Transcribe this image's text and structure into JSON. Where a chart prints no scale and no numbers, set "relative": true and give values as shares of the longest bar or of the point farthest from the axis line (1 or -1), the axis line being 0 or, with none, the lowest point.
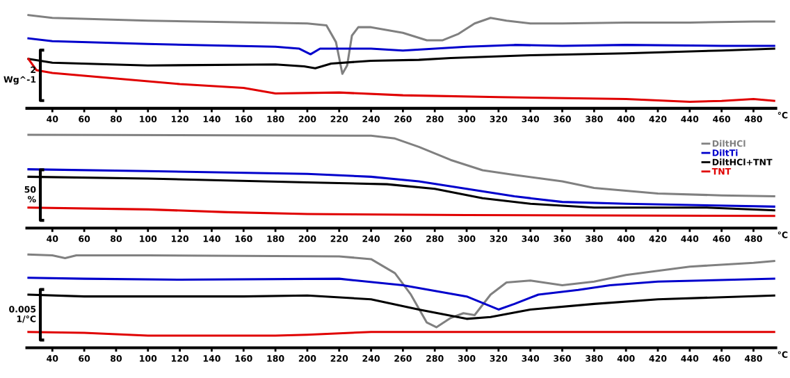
{
  "chart_data": [
    {
      "type": "line",
      "relative": true,
      "xlim": [
        24,
        494
      ],
      "xticks": [
        40,
        60,
        80,
        100,
        120,
        140,
        160,
        180,
        200,
        220,
        240,
        260,
        280,
        300,
        320,
        340,
        360,
        380,
        400,
        420,
        440,
        460,
        480
      ],
      "xlabel": "°C",
      "annotations": [
        "2\nWg^-1"
      ],
      "legend": false,
      "series": [
        {
          "color": "#808080",
          "x": [
            25,
            40,
            100,
            200,
            212,
            218,
            222,
            225,
            228,
            232,
            240,
            260,
            275,
            285,
            295,
            305,
            315,
            325,
            340,
            360,
            400,
            440,
            480,
            493
          ],
          "values": [
            1.0,
            0.97,
            0.94,
            0.91,
            0.89,
            0.71,
            0.37,
            0.46,
            0.78,
            0.87,
            0.87,
            0.81,
            0.73,
            0.73,
            0.8,
            0.91,
            0.97,
            0.94,
            0.91,
            0.91,
            0.92,
            0.92,
            0.93,
            0.93
          ]
        },
        {
          "color": "#0000cc",
          "x": [
            25,
            40,
            100,
            180,
            195,
            202,
            208,
            240,
            260,
            300,
            330,
            360,
            400,
            460,
            493
          ],
          "values": [
            0.75,
            0.72,
            0.69,
            0.66,
            0.64,
            0.58,
            0.64,
            0.64,
            0.62,
            0.66,
            0.68,
            0.67,
            0.68,
            0.67,
            0.67
          ]
        },
        {
          "color": "#000000",
          "x": [
            25,
            40,
            100,
            180,
            198,
            205,
            215,
            240,
            270,
            290,
            340,
            400,
            460,
            493
          ],
          "values": [
            0.53,
            0.49,
            0.46,
            0.47,
            0.45,
            0.43,
            0.48,
            0.51,
            0.52,
            0.54,
            0.57,
            0.59,
            0.62,
            0.64
          ]
        },
        {
          "color": "#e00000",
          "x": [
            25,
            30,
            40,
            80,
            120,
            160,
            180,
            220,
            260,
            320,
            400,
            440,
            460,
            480,
            493
          ],
          "values": [
            0.53,
            0.41,
            0.38,
            0.32,
            0.26,
            0.22,
            0.16,
            0.17,
            0.14,
            0.12,
            0.1,
            0.07,
            0.08,
            0.1,
            0.08
          ]
        }
      ]
    },
    {
      "type": "line",
      "relative": true,
      "xlim": [
        24,
        494
      ],
      "xticks": [
        40,
        60,
        80,
        100,
        120,
        140,
        160,
        180,
        200,
        220,
        240,
        260,
        280,
        300,
        320,
        340,
        360,
        380,
        400,
        420,
        440,
        460,
        480
      ],
      "xlabel": "°C",
      "annotations": [
        "50\n%"
      ],
      "legend": "right",
      "series": [
        {
          "name": "DiltHCl",
          "color": "#808080",
          "x": [
            25,
            240,
            255,
            270,
            290,
            310,
            330,
            360,
            380,
            420,
            460,
            493
          ],
          "values": [
            1.0,
            0.99,
            0.96,
            0.87,
            0.73,
            0.62,
            0.57,
            0.5,
            0.43,
            0.37,
            0.35,
            0.34
          ]
        },
        {
          "name": "DiltTi",
          "color": "#0000cc",
          "x": [
            25,
            100,
            200,
            240,
            270,
            300,
            330,
            360,
            400,
            493
          ],
          "values": [
            0.63,
            0.61,
            0.58,
            0.55,
            0.5,
            0.42,
            0.34,
            0.28,
            0.26,
            0.23
          ]
        },
        {
          "name": "DiltHCl+TNT",
          "color": "#000000",
          "x": [
            25,
            100,
            200,
            250,
            280,
            310,
            340,
            380,
            450,
            493
          ],
          "values": [
            0.55,
            0.53,
            0.49,
            0.47,
            0.42,
            0.32,
            0.26,
            0.22,
            0.22,
            0.19
          ]
        },
        {
          "name": "TNT",
          "color": "#e00000",
          "x": [
            25,
            100,
            150,
            200,
            300,
            493
          ],
          "values": [
            0.22,
            0.2,
            0.17,
            0.15,
            0.14,
            0.13
          ]
        }
      ]
    },
    {
      "type": "line",
      "relative": true,
      "xlim": [
        24,
        494
      ],
      "xticks": [
        40,
        60,
        80,
        100,
        120,
        140,
        160,
        180,
        200,
        220,
        240,
        260,
        280,
        300,
        320,
        340,
        360,
        380,
        400,
        420,
        440,
        460,
        480
      ],
      "xlabel": "°C",
      "annotations": [
        "0.005\n1/°C"
      ],
      "legend": false,
      "series": [
        {
          "color": "#808080",
          "x": [
            25,
            40,
            48,
            55,
            100,
            220,
            240,
            255,
            265,
            275,
            281,
            290,
            298,
            305,
            315,
            325,
            340,
            360,
            380,
            400,
            440,
            480,
            493
          ],
          "values": [
            1.0,
            0.99,
            0.96,
            0.99,
            0.99,
            0.98,
            0.95,
            0.8,
            0.57,
            0.27,
            0.22,
            0.32,
            0.37,
            0.35,
            0.57,
            0.7,
            0.72,
            0.67,
            0.71,
            0.78,
            0.87,
            0.91,
            0.93
          ]
        },
        {
          "color": "#0000cc",
          "x": [
            25,
            60,
            120,
            220,
            260,
            300,
            320,
            330,
            345,
            370,
            390,
            420,
            493
          ],
          "values": [
            0.75,
            0.74,
            0.73,
            0.74,
            0.67,
            0.55,
            0.41,
            0.47,
            0.57,
            0.62,
            0.67,
            0.71,
            0.74
          ]
        },
        {
          "color": "#000000",
          "x": [
            25,
            60,
            160,
            200,
            240,
            270,
            300,
            315,
            340,
            380,
            420,
            493
          ],
          "values": [
            0.57,
            0.55,
            0.55,
            0.56,
            0.52,
            0.41,
            0.31,
            0.33,
            0.41,
            0.47,
            0.52,
            0.56
          ]
        },
        {
          "color": "#e00000",
          "x": [
            25,
            60,
            100,
            140,
            180,
            200,
            240,
            493
          ],
          "values": [
            0.17,
            0.16,
            0.13,
            0.13,
            0.13,
            0.14,
            0.17,
            0.17
          ]
        }
      ]
    }
  ]
}
